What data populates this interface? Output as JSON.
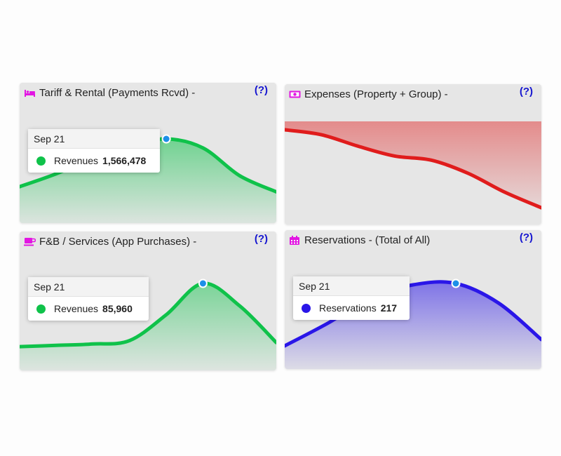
{
  "colors": {
    "revenue": "#0fc24a",
    "expense": "#e01c1c",
    "reservation": "#2a16e8",
    "icon": "#e216e2",
    "help": "#1515d0",
    "marker": "#1d8fe8"
  },
  "cards": [
    {
      "title": "Tariff & Rental (Payments Rcvd) -",
      "icon": "bed-icon",
      "help": "(?)",
      "tooltip": {
        "date": "Sep 21",
        "label": "Revenues",
        "value": "1,566,478"
      }
    },
    {
      "title": "Expenses (Property + Group) -",
      "icon": "money-icon",
      "help": "(?)"
    },
    {
      "title": "F&B / Services (App Purchases) -",
      "icon": "coffee-cup-icon",
      "help": "(?)",
      "tooltip": {
        "date": "Sep 21",
        "label": "Revenues",
        "value": "85,960"
      }
    },
    {
      "title": "Reservations - (Total of All)",
      "icon": "calendar-icon",
      "help": "(?)",
      "tooltip": {
        "date": "Sep 21",
        "label": "Reservations",
        "value": "217"
      }
    }
  ],
  "chart_data": [
    {
      "type": "area",
      "series": [
        {
          "values": [
            0.26,
            0.46,
            0.7,
            0.89,
            1.0,
            0.86,
            0.43,
            0.18
          ]
        }
      ],
      "highlight_index": 4
    },
    {
      "type": "area",
      "series": [
        {
          "values": [
            1.0,
            0.94,
            0.8,
            0.68,
            0.63,
            0.47,
            0.24,
            0.05
          ]
        }
      ]
    },
    {
      "type": "area",
      "series": [
        {
          "values": [
            0.06,
            0.08,
            0.1,
            0.15,
            0.53,
            0.99,
            0.66,
            0.12
          ]
        }
      ],
      "highlight_index": 5
    },
    {
      "type": "area",
      "series": [
        {
          "values": [
            0.1,
            0.42,
            0.78,
            0.97,
            0.99,
            0.71,
            0.19
          ]
        }
      ],
      "highlight_index": 4
    }
  ]
}
